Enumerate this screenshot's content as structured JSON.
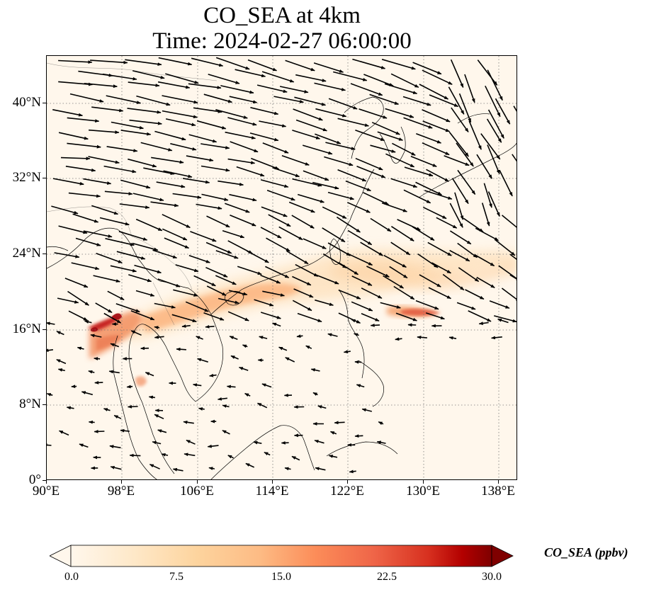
{
  "title": {
    "line1": "CO_SEA at 4km",
    "line2": "Time: 2024-02-27 06:00:00"
  },
  "map": {
    "projection": "PlateCarree",
    "extent": {
      "lon_min": 90,
      "lon_max": 140,
      "lat_min": 0,
      "lat_max": 45
    },
    "gridlines": "dotted",
    "lat_ticks": [
      "0°",
      "8°N",
      "16°N",
      "24°N",
      "32°N",
      "40°N"
    ],
    "lon_ticks": [
      "90°E",
      "98°E",
      "106°E",
      "114°E",
      "122°E",
      "130°E",
      "138°E"
    ],
    "field": "CO_SEA",
    "vectors": "wind",
    "colors": {
      "background": "#fff7ec",
      "high": "#7f0000",
      "mid": "#ef6548",
      "low": "#fdd49e"
    }
  },
  "colorbar": {
    "ticks": [
      "0.0",
      "7.5",
      "15.0",
      "22.5",
      "30.0"
    ],
    "label": "CO_SEA (ppbv)",
    "colormap": "OrRd",
    "extend": "both"
  }
}
